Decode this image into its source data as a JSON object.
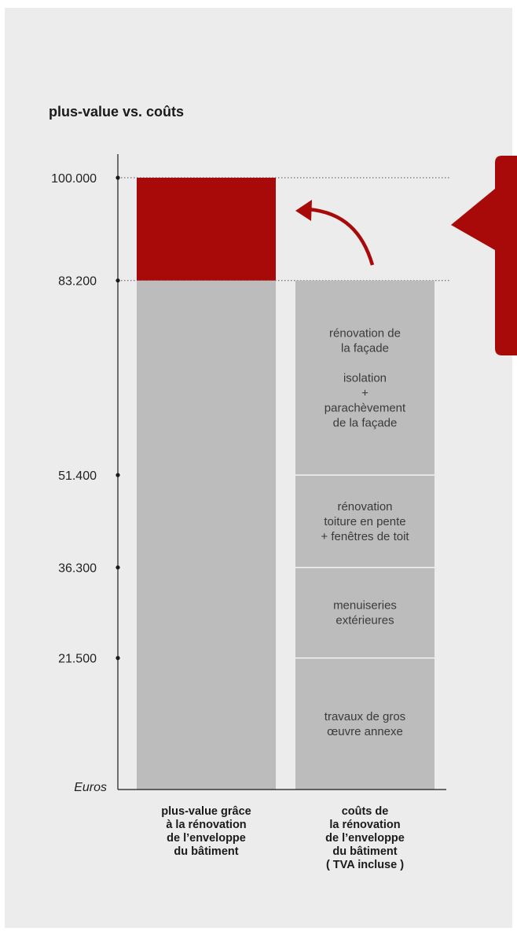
{
  "chart_data": {
    "type": "bar",
    "title": "plus-value vs. coûts",
    "ylabel": "Euros",
    "ylim": [
      0,
      100000
    ],
    "yticks": [
      {
        "value": 100000,
        "label": "100.000"
      },
      {
        "value": 83200,
        "label": "83.200"
      },
      {
        "value": 51400,
        "label": "51.400"
      },
      {
        "value": 36300,
        "label": "36.300"
      },
      {
        "value": 21500,
        "label": "21.500"
      }
    ],
    "categories": [
      "plus-value grâce\nà la rénovation\nde l’enveloppe\ndu bâtiment",
      "coûts de\nla rénovation\nde l’enveloppe\ndu bâtiment\n( TVA incluse )"
    ],
    "bars": [
      {
        "category_index": 0,
        "segments": [
          {
            "from": 0,
            "to": 83200,
            "color": "#bcbcbc",
            "label": ""
          },
          {
            "from": 83200,
            "to": 100000,
            "color": "#a80a0a",
            "label": ""
          }
        ]
      },
      {
        "category_index": 1,
        "segments": [
          {
            "from": 0,
            "to": 21500,
            "color": "#bcbcbc",
            "label": "travaux de gros\nœuvre annexe"
          },
          {
            "from": 21500,
            "to": 36300,
            "color": "#bcbcbc",
            "label": "menuiseries\nextérieures"
          },
          {
            "from": 36300,
            "to": 51400,
            "color": "#bcbcbc",
            "label": "rénovation\ntoiture en pente\n+ fenêtres de toit"
          },
          {
            "from": 51400,
            "to": 83200,
            "color": "#bcbcbc",
            "label": "rénovation de\nla façade\n\nisolation\n+\nparachèvement\nde la façade"
          }
        ]
      }
    ],
    "reference_lines": [
      100000,
      83200
    ],
    "colors": {
      "accent": "#a80a0a",
      "bar": "#bcbcbc",
      "axis": "#1a1a1a",
      "background": "#ececec"
    }
  }
}
